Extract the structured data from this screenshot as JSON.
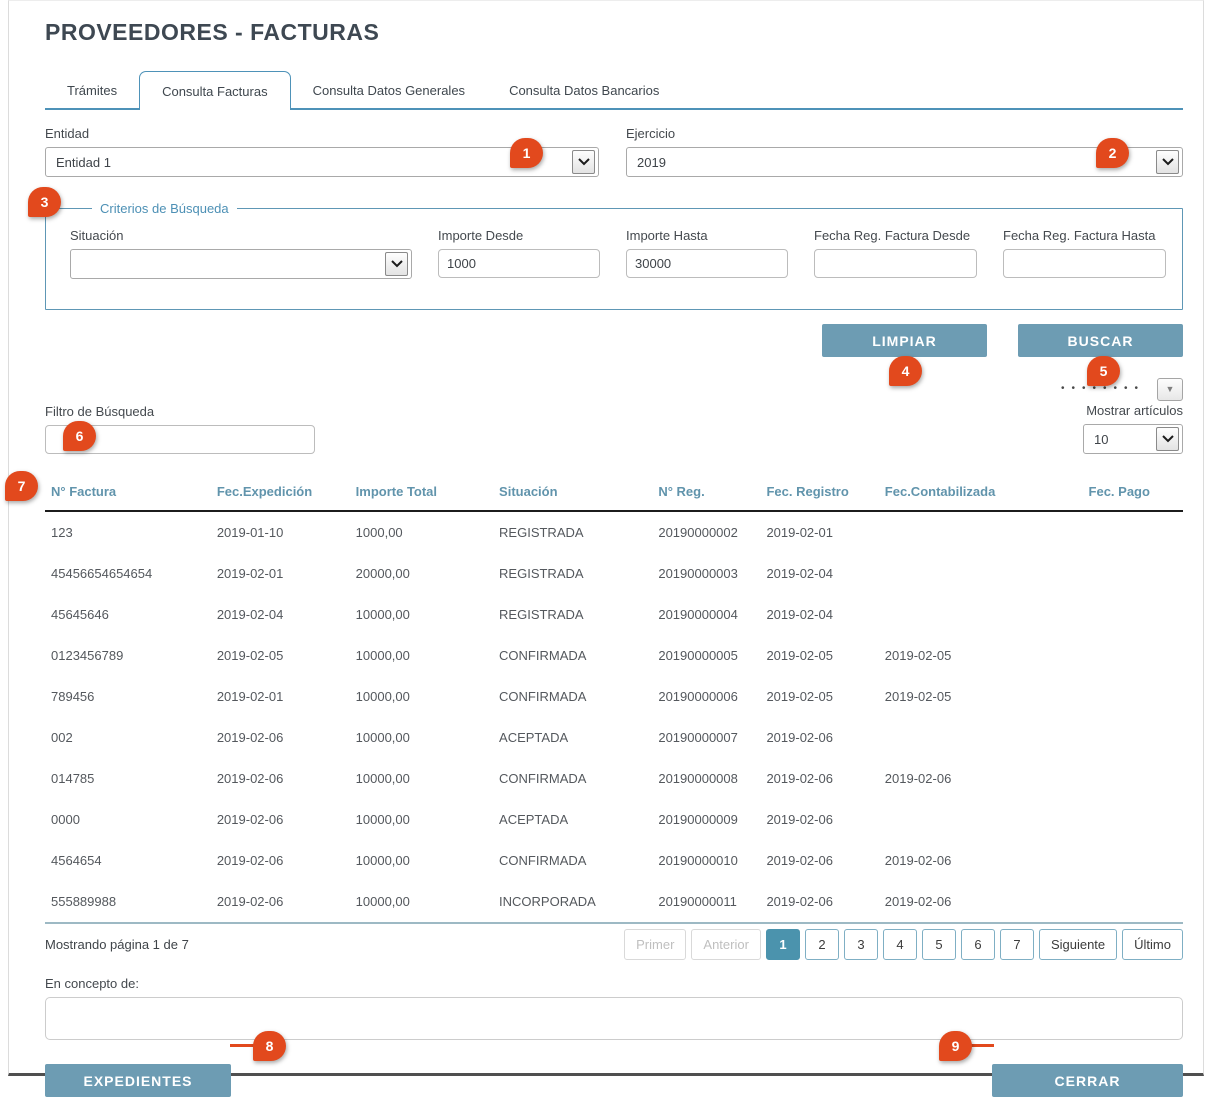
{
  "page": {
    "title": "PROVEEDORES - FACTURAS"
  },
  "tabs": [
    {
      "label": "Trámites",
      "active": false
    },
    {
      "label": "Consulta Facturas",
      "active": true
    },
    {
      "label": "Consulta Datos Generales",
      "active": false
    },
    {
      "label": "Consulta Datos Bancarios",
      "active": false
    }
  ],
  "filters": {
    "entidad": {
      "label": "Entidad",
      "value": "Entidad 1"
    },
    "ejercicio": {
      "label": "Ejercicio",
      "value": "2019"
    },
    "criterios": {
      "legend": "Criterios de Búsqueda",
      "situacion": {
        "label": "Situación",
        "value": ""
      },
      "importe_desde": {
        "label": "Importe Desde",
        "value": "1000"
      },
      "importe_hasta": {
        "label": "Importe Hasta",
        "value": "30000"
      },
      "fecha_desde": {
        "label": "Fecha Reg. Factura Desde",
        "value": ""
      },
      "fecha_hasta": {
        "label": "Fecha Reg. Factura Hasta",
        "value": ""
      }
    },
    "limpiar_label": "LIMPIAR",
    "buscar_label": "BUSCAR"
  },
  "table_controls": {
    "dots": "••••••••",
    "filtro_label": "Filtro de Búsqueda",
    "filtro_value": "",
    "mostrar_label": "Mostrar artículos",
    "mostrar_value": "10"
  },
  "table": {
    "columns": [
      "N° Factura",
      "Fec.Expedición",
      "Importe Total",
      "Situación",
      "N° Reg.",
      "Fec. Registro",
      "Fec.Contabilizada",
      "Fec. Pago"
    ],
    "rows": [
      [
        "123",
        "2019-01-10",
        "1000,00",
        "REGISTRADA",
        "20190000002",
        "2019-02-01",
        "",
        ""
      ],
      [
        "45456654654654",
        "2019-02-01",
        "20000,00",
        "REGISTRADA",
        "20190000003",
        "2019-02-04",
        "",
        ""
      ],
      [
        "45645646",
        "2019-02-04",
        "10000,00",
        "REGISTRADA",
        "20190000004",
        "2019-02-04",
        "",
        ""
      ],
      [
        "0123456789",
        "2019-02-05",
        "10000,00",
        "CONFIRMADA",
        "20190000005",
        "2019-02-05",
        "2019-02-05",
        ""
      ],
      [
        "789456",
        "2019-02-01",
        "10000,00",
        "CONFIRMADA",
        "20190000006",
        "2019-02-05",
        "2019-02-05",
        ""
      ],
      [
        "002",
        "2019-02-06",
        "10000,00",
        "ACEPTADA",
        "20190000007",
        "2019-02-06",
        "",
        ""
      ],
      [
        "014785",
        "2019-02-06",
        "10000,00",
        "CONFIRMADA",
        "20190000008",
        "2019-02-06",
        "2019-02-06",
        ""
      ],
      [
        "0000",
        "2019-02-06",
        "10000,00",
        "ACEPTADA",
        "20190000009",
        "2019-02-06",
        "",
        ""
      ],
      [
        "4564654",
        "2019-02-06",
        "10000,00",
        "CONFIRMADA",
        "20190000010",
        "2019-02-06",
        "2019-02-06",
        ""
      ],
      [
        "555889988",
        "2019-02-06",
        "10000,00",
        "INCORPORADA",
        "20190000011",
        "2019-02-06",
        "2019-02-06",
        ""
      ]
    ]
  },
  "pagination": {
    "status": "Mostrando página 1 de 7",
    "buttons": [
      {
        "label": "Primer",
        "state": "disabled"
      },
      {
        "label": "Anterior",
        "state": "disabled"
      },
      {
        "label": "1",
        "state": "active"
      },
      {
        "label": "2",
        "state": "normal"
      },
      {
        "label": "3",
        "state": "normal"
      },
      {
        "label": "4",
        "state": "normal"
      },
      {
        "label": "5",
        "state": "normal"
      },
      {
        "label": "6",
        "state": "normal"
      },
      {
        "label": "7",
        "state": "normal"
      },
      {
        "label": "Siguiente",
        "state": "normal"
      },
      {
        "label": "Último",
        "state": "normal"
      }
    ]
  },
  "concepto": {
    "label": "En concepto de:",
    "value": ""
  },
  "footer": {
    "expedientes_label": "EXPEDIENTES",
    "cerrar_label": "CERRAR"
  },
  "annotations": {
    "badges": [
      "1",
      "2",
      "3",
      "4",
      "5",
      "6",
      "7",
      "8",
      "9"
    ]
  },
  "colors": {
    "accent_button": "#6D9CB3",
    "tab_border": "#4E92B8",
    "table_header_text": "#6194AC",
    "active_page_button": "#4B93AD",
    "annotation_badge": "#E2491D",
    "title_text": "#3E4852"
  }
}
